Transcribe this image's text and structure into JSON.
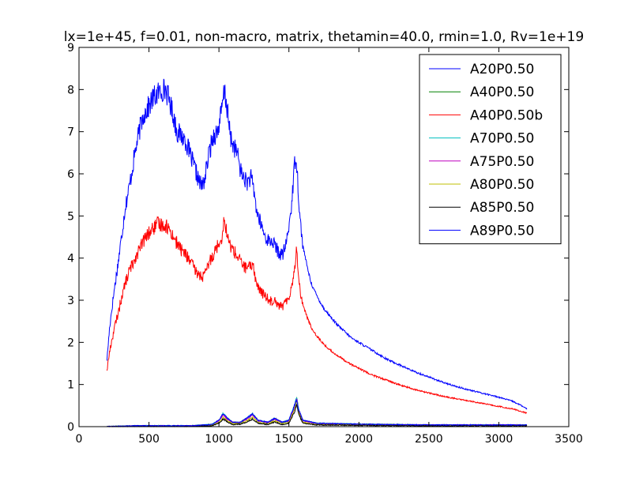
{
  "chart_data": {
    "type": "line",
    "title": "lx=1e+45, f=0.01, non-macro, matrix, thetamin=40.0, rmin=1.0, Rv=1e+19",
    "xlabel": "",
    "ylabel": "",
    "xlim": [
      0,
      3500
    ],
    "ylim": [
      0,
      9
    ],
    "xticks": [
      0,
      500,
      1000,
      1500,
      2000,
      2500,
      3000,
      3500
    ],
    "yticks": [
      0,
      1,
      2,
      3,
      4,
      5,
      6,
      7,
      8,
      9
    ],
    "grid": false,
    "legend_position": "top-right",
    "series": [
      {
        "name": "A20P0.50",
        "color": "#0000ff",
        "points": [
          [
            200,
            1.6
          ],
          [
            220,
            2.4
          ],
          [
            250,
            3.2
          ],
          [
            280,
            3.9
          ],
          [
            300,
            4.4
          ],
          [
            330,
            5.2
          ],
          [
            360,
            5.7
          ],
          [
            400,
            6.5
          ],
          [
            430,
            7.0
          ],
          [
            460,
            7.4
          ],
          [
            500,
            7.6
          ],
          [
            530,
            7.8
          ],
          [
            560,
            7.9
          ],
          [
            600,
            8.0
          ],
          [
            620,
            8.0
          ],
          [
            650,
            7.7
          ],
          [
            680,
            7.3
          ],
          [
            700,
            7.0
          ],
          [
            730,
            6.9
          ],
          [
            760,
            6.8
          ],
          [
            800,
            6.4
          ],
          [
            830,
            6.1
          ],
          [
            860,
            5.8
          ],
          [
            880,
            5.7
          ],
          [
            900,
            5.9
          ],
          [
            930,
            6.5
          ],
          [
            960,
            6.9
          ],
          [
            990,
            7.0
          ],
          [
            1020,
            7.5
          ],
          [
            1040,
            8.0
          ],
          [
            1060,
            7.5
          ],
          [
            1080,
            6.9
          ],
          [
            1100,
            6.7
          ],
          [
            1130,
            6.5
          ],
          [
            1160,
            6.0
          ],
          [
            1180,
            5.9
          ],
          [
            1200,
            5.8
          ],
          [
            1230,
            5.9
          ],
          [
            1250,
            5.6
          ],
          [
            1270,
            5.1
          ],
          [
            1300,
            4.8
          ],
          [
            1330,
            4.5
          ],
          [
            1360,
            4.4
          ],
          [
            1380,
            4.4
          ],
          [
            1400,
            4.3
          ],
          [
            1430,
            4.1
          ],
          [
            1460,
            4.1
          ],
          [
            1490,
            4.5
          ],
          [
            1520,
            5.3
          ],
          [
            1540,
            6.2
          ],
          [
            1550,
            6.5
          ],
          [
            1560,
            6.0
          ],
          [
            1580,
            4.9
          ],
          [
            1600,
            4.3
          ],
          [
            1630,
            3.8
          ],
          [
            1660,
            3.4
          ],
          [
            1700,
            3.1
          ],
          [
            1750,
            2.8
          ],
          [
            1800,
            2.6
          ],
          [
            1850,
            2.4
          ],
          [
            1900,
            2.25
          ],
          [
            1950,
            2.1
          ],
          [
            2000,
            2.0
          ],
          [
            2100,
            1.8
          ],
          [
            2200,
            1.6
          ],
          [
            2300,
            1.45
          ],
          [
            2400,
            1.3
          ],
          [
            2500,
            1.18
          ],
          [
            2600,
            1.05
          ],
          [
            2700,
            0.95
          ],
          [
            2800,
            0.86
          ],
          [
            2900,
            0.78
          ],
          [
            3000,
            0.7
          ],
          [
            3100,
            0.6
          ],
          [
            3150,
            0.52
          ],
          [
            3200,
            0.42
          ]
        ]
      },
      {
        "name": "A40P0.50",
        "color": "#008000",
        "points": [
          [
            200,
            0.0
          ],
          [
            400,
            0.02
          ],
          [
            600,
            0.02
          ],
          [
            800,
            0.02
          ],
          [
            950,
            0.05
          ],
          [
            1000,
            0.15
          ],
          [
            1030,
            0.3
          ],
          [
            1060,
            0.2
          ],
          [
            1100,
            0.1
          ],
          [
            1150,
            0.1
          ],
          [
            1200,
            0.2
          ],
          [
            1240,
            0.3
          ],
          [
            1280,
            0.15
          ],
          [
            1350,
            0.1
          ],
          [
            1400,
            0.2
          ],
          [
            1450,
            0.1
          ],
          [
            1500,
            0.15
          ],
          [
            1540,
            0.5
          ],
          [
            1555,
            0.68
          ],
          [
            1570,
            0.4
          ],
          [
            1600,
            0.15
          ],
          [
            1700,
            0.08
          ],
          [
            2000,
            0.06
          ],
          [
            2500,
            0.04
          ],
          [
            3000,
            0.04
          ],
          [
            3200,
            0.04
          ]
        ]
      },
      {
        "name": "A40P0.50b",
        "color": "#ff0000",
        "points": [
          [
            200,
            1.35
          ],
          [
            220,
            1.8
          ],
          [
            250,
            2.3
          ],
          [
            280,
            2.7
          ],
          [
            300,
            3.0
          ],
          [
            330,
            3.4
          ],
          [
            360,
            3.7
          ],
          [
            400,
            4.0
          ],
          [
            430,
            4.2
          ],
          [
            460,
            4.4
          ],
          [
            500,
            4.6
          ],
          [
            530,
            4.7
          ],
          [
            560,
            4.8
          ],
          [
            600,
            4.8
          ],
          [
            630,
            4.75
          ],
          [
            660,
            4.6
          ],
          [
            700,
            4.35
          ],
          [
            730,
            4.2
          ],
          [
            760,
            4.1
          ],
          [
            800,
            3.9
          ],
          [
            830,
            3.7
          ],
          [
            860,
            3.6
          ],
          [
            880,
            3.55
          ],
          [
            900,
            3.6
          ],
          [
            930,
            3.9
          ],
          [
            960,
            4.1
          ],
          [
            990,
            4.3
          ],
          [
            1020,
            4.5
          ],
          [
            1040,
            4.95
          ],
          [
            1060,
            4.5
          ],
          [
            1080,
            4.3
          ],
          [
            1100,
            4.2
          ],
          [
            1130,
            4.05
          ],
          [
            1160,
            3.9
          ],
          [
            1180,
            3.8
          ],
          [
            1200,
            3.75
          ],
          [
            1230,
            3.8
          ],
          [
            1245,
            3.9
          ],
          [
            1260,
            3.5
          ],
          [
            1280,
            3.3
          ],
          [
            1300,
            3.2
          ],
          [
            1330,
            3.1
          ],
          [
            1360,
            3.0
          ],
          [
            1380,
            2.98
          ],
          [
            1400,
            3.05
          ],
          [
            1420,
            2.9
          ],
          [
            1450,
            2.85
          ],
          [
            1480,
            2.95
          ],
          [
            1510,
            3.2
          ],
          [
            1530,
            3.5
          ],
          [
            1545,
            3.9
          ],
          [
            1555,
            4.2
          ],
          [
            1565,
            3.8
          ],
          [
            1580,
            3.2
          ],
          [
            1600,
            2.9
          ],
          [
            1630,
            2.6
          ],
          [
            1660,
            2.35
          ],
          [
            1700,
            2.15
          ],
          [
            1750,
            1.95
          ],
          [
            1800,
            1.8
          ],
          [
            1850,
            1.68
          ],
          [
            1900,
            1.57
          ],
          [
            1950,
            1.47
          ],
          [
            2000,
            1.38
          ],
          [
            2100,
            1.22
          ],
          [
            2200,
            1.1
          ],
          [
            2300,
            0.98
          ],
          [
            2400,
            0.88
          ],
          [
            2500,
            0.8
          ],
          [
            2600,
            0.72
          ],
          [
            2700,
            0.66
          ],
          [
            2800,
            0.6
          ],
          [
            2900,
            0.54
          ],
          [
            3000,
            0.48
          ],
          [
            3100,
            0.42
          ],
          [
            3150,
            0.37
          ],
          [
            3200,
            0.32
          ]
        ]
      },
      {
        "name": "A70P0.50",
        "color": "#00bfbf",
        "points": [
          [
            200,
            0.0
          ],
          [
            400,
            0.02
          ],
          [
            600,
            0.02
          ],
          [
            800,
            0.02
          ],
          [
            950,
            0.05
          ],
          [
            1000,
            0.15
          ],
          [
            1030,
            0.32
          ],
          [
            1060,
            0.2
          ],
          [
            1100,
            0.1
          ],
          [
            1150,
            0.1
          ],
          [
            1200,
            0.2
          ],
          [
            1240,
            0.3
          ],
          [
            1280,
            0.15
          ],
          [
            1350,
            0.1
          ],
          [
            1400,
            0.2
          ],
          [
            1450,
            0.1
          ],
          [
            1500,
            0.15
          ],
          [
            1540,
            0.5
          ],
          [
            1555,
            0.72
          ],
          [
            1570,
            0.4
          ],
          [
            1600,
            0.15
          ],
          [
            1700,
            0.08
          ],
          [
            2000,
            0.06
          ],
          [
            2500,
            0.04
          ],
          [
            3000,
            0.04
          ],
          [
            3200,
            0.04
          ]
        ]
      },
      {
        "name": "A75P0.50",
        "color": "#bf00bf",
        "points": [
          [
            200,
            0.0
          ],
          [
            400,
            0.02
          ],
          [
            600,
            0.02
          ],
          [
            800,
            0.02
          ],
          [
            950,
            0.04
          ],
          [
            1000,
            0.14
          ],
          [
            1030,
            0.28
          ],
          [
            1060,
            0.18
          ],
          [
            1100,
            0.1
          ],
          [
            1150,
            0.1
          ],
          [
            1200,
            0.18
          ],
          [
            1240,
            0.28
          ],
          [
            1280,
            0.14
          ],
          [
            1350,
            0.1
          ],
          [
            1400,
            0.18
          ],
          [
            1450,
            0.1
          ],
          [
            1500,
            0.14
          ],
          [
            1540,
            0.45
          ],
          [
            1555,
            0.65
          ],
          [
            1570,
            0.38
          ],
          [
            1600,
            0.14
          ],
          [
            1700,
            0.07
          ],
          [
            2000,
            0.05
          ],
          [
            2500,
            0.04
          ],
          [
            3000,
            0.04
          ],
          [
            3200,
            0.04
          ]
        ]
      },
      {
        "name": "A80P0.50",
        "color": "#bfbf00",
        "points": [
          [
            200,
            0.0
          ],
          [
            400,
            0.01
          ],
          [
            600,
            0.01
          ],
          [
            800,
            0.01
          ],
          [
            950,
            0.03
          ],
          [
            1000,
            0.1
          ],
          [
            1030,
            0.22
          ],
          [
            1060,
            0.14
          ],
          [
            1100,
            0.07
          ],
          [
            1150,
            0.08
          ],
          [
            1200,
            0.14
          ],
          [
            1240,
            0.22
          ],
          [
            1280,
            0.1
          ],
          [
            1350,
            0.07
          ],
          [
            1400,
            0.14
          ],
          [
            1450,
            0.07
          ],
          [
            1500,
            0.1
          ],
          [
            1540,
            0.4
          ],
          [
            1555,
            0.6
          ],
          [
            1570,
            0.34
          ],
          [
            1600,
            0.1
          ],
          [
            1700,
            0.05
          ],
          [
            2000,
            0.04
          ],
          [
            2500,
            0.03
          ],
          [
            3000,
            0.03
          ],
          [
            3200,
            0.03
          ]
        ]
      },
      {
        "name": "A85P0.50",
        "color": "#000000",
        "points": [
          [
            200,
            0.0
          ],
          [
            400,
            0.01
          ],
          [
            600,
            0.01
          ],
          [
            800,
            0.01
          ],
          [
            950,
            0.02
          ],
          [
            1000,
            0.08
          ],
          [
            1030,
            0.18
          ],
          [
            1060,
            0.11
          ],
          [
            1100,
            0.05
          ],
          [
            1150,
            0.06
          ],
          [
            1200,
            0.11
          ],
          [
            1240,
            0.18
          ],
          [
            1280,
            0.08
          ],
          [
            1350,
            0.05
          ],
          [
            1400,
            0.11
          ],
          [
            1450,
            0.05
          ],
          [
            1500,
            0.08
          ],
          [
            1540,
            0.35
          ],
          [
            1555,
            0.55
          ],
          [
            1570,
            0.3
          ],
          [
            1600,
            0.08
          ],
          [
            1700,
            0.04
          ],
          [
            2000,
            0.03
          ],
          [
            2500,
            0.02
          ],
          [
            3000,
            0.02
          ],
          [
            3200,
            0.02
          ]
        ]
      },
      {
        "name": "A89P0.50",
        "color": "#0000ff",
        "points": [
          [
            200,
            0.0
          ],
          [
            400,
            0.02
          ],
          [
            600,
            0.02
          ],
          [
            800,
            0.02
          ],
          [
            950,
            0.05
          ],
          [
            1000,
            0.15
          ],
          [
            1030,
            0.3
          ],
          [
            1060,
            0.2
          ],
          [
            1100,
            0.1
          ],
          [
            1150,
            0.1
          ],
          [
            1200,
            0.2
          ],
          [
            1240,
            0.3
          ],
          [
            1280,
            0.15
          ],
          [
            1350,
            0.1
          ],
          [
            1400,
            0.2
          ],
          [
            1450,
            0.1
          ],
          [
            1500,
            0.15
          ],
          [
            1540,
            0.5
          ],
          [
            1555,
            0.65
          ],
          [
            1570,
            0.4
          ],
          [
            1600,
            0.15
          ],
          [
            1700,
            0.08
          ],
          [
            2000,
            0.06
          ],
          [
            2500,
            0.04
          ],
          [
            3000,
            0.04
          ],
          [
            3200,
            0.04
          ]
        ]
      }
    ]
  }
}
